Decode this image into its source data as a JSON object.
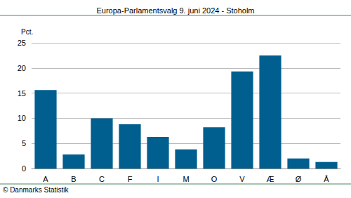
{
  "chart_data": {
    "type": "bar",
    "title": "Europa-Parlamentsvalg 9. juni 2024 - Stoholm",
    "y_label": "Pct.",
    "annotation": "© Danmarks Statistik",
    "categories": [
      "A",
      "B",
      "C",
      "F",
      "I",
      "M",
      "O",
      "V",
      "Æ",
      "Ø",
      "Å"
    ],
    "values": [
      15.6,
      2.8,
      10.0,
      8.8,
      6.3,
      3.8,
      8.2,
      19.3,
      22.5,
      2.0,
      1.3
    ],
    "color": "#005f8f",
    "ylim": [
      0,
      25
    ],
    "yticks": [
      0,
      5,
      10,
      15,
      20,
      25
    ],
    "grid": true
  }
}
